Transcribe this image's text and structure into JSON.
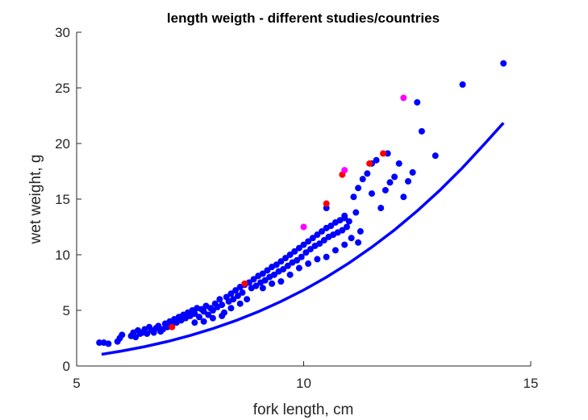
{
  "chart_data": {
    "type": "scatter",
    "title": "length weigth - different studies/countries",
    "xlabel": "fork length, cm",
    "ylabel": "wet weight, g",
    "xlim": [
      5,
      15
    ],
    "ylim": [
      0,
      30
    ],
    "xticks": [
      5,
      10,
      15
    ],
    "yticks": [
      0,
      5,
      10,
      15,
      20,
      25,
      30
    ],
    "grid": false,
    "box": false,
    "series": [
      {
        "color": "#0000ff",
        "marker": "filled-circle",
        "points": [
          [
            5.5,
            2.1
          ],
          [
            5.6,
            2.1
          ],
          [
            5.7,
            2.0
          ],
          [
            5.9,
            2.2
          ],
          [
            5.95,
            2.5
          ],
          [
            6.0,
            2.8
          ],
          [
            6.2,
            2.7
          ],
          [
            6.25,
            3.0
          ],
          [
            6.3,
            2.6
          ],
          [
            6.35,
            3.2
          ],
          [
            6.4,
            2.9
          ],
          [
            6.45,
            3.0
          ],
          [
            6.5,
            3.3
          ],
          [
            6.55,
            2.9
          ],
          [
            6.6,
            3.5
          ],
          [
            6.65,
            3.2
          ],
          [
            6.7,
            3.0
          ],
          [
            6.75,
            3.4
          ],
          [
            6.8,
            3.6
          ],
          [
            6.85,
            3.1
          ],
          [
            6.9,
            3.3
          ],
          [
            6.95,
            3.8
          ],
          [
            7.0,
            3.5
          ],
          [
            7.05,
            4.0
          ],
          [
            7.1,
            3.7
          ],
          [
            7.15,
            4.2
          ],
          [
            7.2,
            3.9
          ],
          [
            7.25,
            4.4
          ],
          [
            7.3,
            4.1
          ],
          [
            7.35,
            4.6
          ],
          [
            7.4,
            4.3
          ],
          [
            7.45,
            4.8
          ],
          [
            7.5,
            4.5
          ],
          [
            7.55,
            5.0
          ],
          [
            7.6,
            4.7
          ],
          [
            7.65,
            5.2
          ],
          [
            7.7,
            4.4
          ],
          [
            7.75,
            5.1
          ],
          [
            7.8,
            4.9
          ],
          [
            7.85,
            5.4
          ],
          [
            7.9,
            4.6
          ],
          [
            7.95,
            5.2
          ],
          [
            8.0,
            5.0
          ],
          [
            8.05,
            5.6
          ],
          [
            8.1,
            5.3
          ],
          [
            8.15,
            6.0
          ],
          [
            8.2,
            5.5
          ],
          [
            8.25,
            4.8
          ],
          [
            8.3,
            6.2
          ],
          [
            8.35,
            5.8
          ],
          [
            8.4,
            6.5
          ],
          [
            8.45,
            6.0
          ],
          [
            8.5,
            6.8
          ],
          [
            8.55,
            6.3
          ],
          [
            8.6,
            7.1
          ],
          [
            8.65,
            6.6
          ],
          [
            8.7,
            7.3
          ],
          [
            8.75,
            6.0
          ],
          [
            8.8,
            7.5
          ],
          [
            8.85,
            7.0
          ],
          [
            8.9,
            7.8
          ],
          [
            8.95,
            7.2
          ],
          [
            9.0,
            8.1
          ],
          [
            9.05,
            7.5
          ],
          [
            9.1,
            8.3
          ],
          [
            9.15,
            7.7
          ],
          [
            9.2,
            8.6
          ],
          [
            9.25,
            8.0
          ],
          [
            9.3,
            8.9
          ],
          [
            9.35,
            8.2
          ],
          [
            9.4,
            9.1
          ],
          [
            9.45,
            8.5
          ],
          [
            9.5,
            9.4
          ],
          [
            9.55,
            8.7
          ],
          [
            9.6,
            9.7
          ],
          [
            9.65,
            9.0
          ],
          [
            9.7,
            10.0
          ],
          [
            9.75,
            9.3
          ],
          [
            9.8,
            10.3
          ],
          [
            9.85,
            9.5
          ],
          [
            9.9,
            10.6
          ],
          [
            9.95,
            9.8
          ],
          [
            10.0,
            10.9
          ],
          [
            10.05,
            10.2
          ],
          [
            10.1,
            11.2
          ],
          [
            10.15,
            10.5
          ],
          [
            10.2,
            11.5
          ],
          [
            10.25,
            10.8
          ],
          [
            10.3,
            11.8
          ],
          [
            10.35,
            11.0
          ],
          [
            10.4,
            12.1
          ],
          [
            10.45,
            11.3
          ],
          [
            10.5,
            12.4
          ],
          [
            10.55,
            11.6
          ],
          [
            10.6,
            12.6
          ],
          [
            10.65,
            11.8
          ],
          [
            10.7,
            12.9
          ],
          [
            10.75,
            12.0
          ],
          [
            10.8,
            13.1
          ],
          [
            10.85,
            12.2
          ],
          [
            10.9,
            13.3
          ],
          [
            10.95,
            12.5
          ],
          [
            11.0,
            13.0
          ],
          [
            11.1,
            15.2
          ],
          [
            11.15,
            13.8
          ],
          [
            11.2,
            16.0
          ],
          [
            11.3,
            16.8
          ],
          [
            11.4,
            17.3
          ],
          [
            11.5,
            15.5
          ],
          [
            11.6,
            18.5
          ],
          [
            11.7,
            14.2
          ],
          [
            11.8,
            15.8
          ],
          [
            11.9,
            16.5
          ],
          [
            12.0,
            17.0
          ],
          [
            12.1,
            18.2
          ],
          [
            12.2,
            15.2
          ],
          [
            12.3,
            16.6
          ],
          [
            12.4,
            17.4
          ],
          [
            12.5,
            23.7
          ],
          [
            12.6,
            21.1
          ],
          [
            12.9,
            18.9
          ],
          [
            13.5,
            25.3
          ],
          [
            14.4,
            27.2
          ],
          [
            10.5,
            14.2
          ],
          [
            10.9,
            13.5
          ],
          [
            11.25,
            12.1
          ],
          [
            11.5,
            18.2
          ],
          [
            11.85,
            19.1
          ],
          [
            9.1,
            7.0
          ],
          [
            9.3,
            7.4
          ],
          [
            9.5,
            7.6
          ],
          [
            9.7,
            8.2
          ],
          [
            9.9,
            8.8
          ],
          [
            10.1,
            9.2
          ],
          [
            10.3,
            9.6
          ],
          [
            10.5,
            9.8
          ],
          [
            10.7,
            10.4
          ],
          [
            10.9,
            10.9
          ],
          [
            11.05,
            11.5
          ],
          [
            11.2,
            11.1
          ],
          [
            8.4,
            5.2
          ],
          [
            8.6,
            5.6
          ],
          [
            8.2,
            4.5
          ],
          [
            8.0,
            4.3
          ],
          [
            7.8,
            4.0
          ],
          [
            7.6,
            3.9
          ]
        ]
      },
      {
        "color": "#ff0000",
        "marker": "filled-circle",
        "points": [
          [
            7.1,
            3.5
          ],
          [
            8.7,
            7.4
          ],
          [
            10.5,
            14.6
          ],
          [
            10.85,
            17.2
          ],
          [
            11.45,
            18.2
          ],
          [
            11.75,
            19.1
          ]
        ]
      },
      {
        "color": "#ff00ff",
        "marker": "filled-circle",
        "points": [
          [
            10.0,
            12.5
          ],
          [
            10.9,
            17.6
          ],
          [
            12.2,
            24.1
          ]
        ]
      },
      {
        "color": "#0000ff",
        "type": "line",
        "x": [
          5.55,
          6.0,
          6.5,
          7.0,
          7.5,
          8.0,
          8.5,
          9.0,
          9.5,
          10.0,
          10.5,
          11.0,
          11.5,
          12.0,
          12.5,
          13.0,
          13.5,
          14.0,
          14.4
        ],
        "values": [
          1.05,
          1.35,
          1.74,
          2.2,
          2.74,
          3.36,
          4.07,
          4.88,
          5.8,
          6.83,
          7.98,
          9.26,
          10.68,
          12.23,
          13.94,
          15.8,
          17.83,
          20.04,
          21.85
        ]
      }
    ]
  }
}
